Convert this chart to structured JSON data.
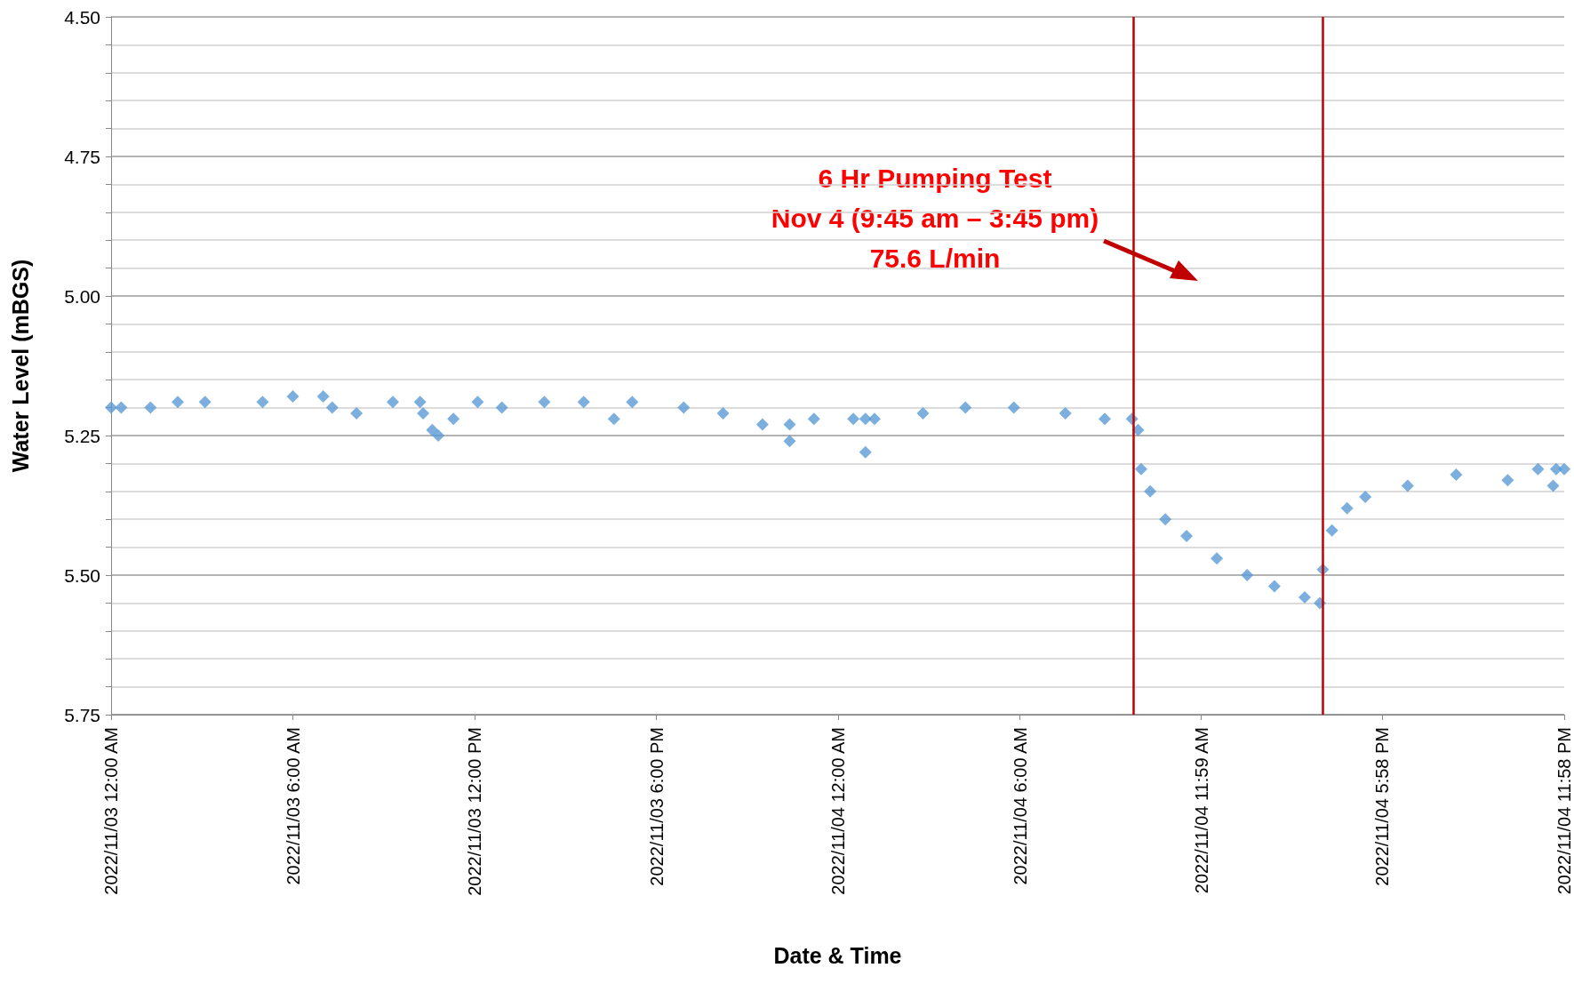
{
  "chart_data": {
    "type": "scatter",
    "xlabel": "Date & Time",
    "ylabel": "Water Level (mBGS)",
    "annotations": [
      "6 Hr Pumping Test\nNov 4 (9:45 am – 3:45 pm)\n75.6 L/min"
    ],
    "marker": "diamond",
    "grid": "y",
    "xlim": [
      "2022-11-03T00:00",
      "2022-11-04T23:58"
    ],
    "xticks": [
      {
        "value": "2022-11-03T00:00",
        "label": "2022/11/03 12:00 AM"
      },
      {
        "value": "2022-11-03T06:00",
        "label": "2022/11/03 6:00 AM"
      },
      {
        "value": "2022-11-03T12:00",
        "label": "2022/11/03 12:00 PM"
      },
      {
        "value": "2022-11-03T18:00",
        "label": "2022/11/03 6:00 PM"
      },
      {
        "value": "2022-11-04T00:00",
        "label": "2022/11/04 12:00 AM"
      },
      {
        "value": "2022-11-04T06:00",
        "label": "2022/11/04 6:00 AM"
      },
      {
        "value": "2022-11-04T11:59",
        "label": "2022/11/04 11:59 AM"
      },
      {
        "value": "2022-11-04T17:58",
        "label": "2022/11/04 5:58 PM"
      },
      {
        "value": "2022-11-04T23:58",
        "label": "2022/11/04 11:58 PM"
      }
    ],
    "ylim": [
      5.75,
      4.5
    ],
    "yticks": [
      {
        "value": 4.5,
        "label": "4.50"
      },
      {
        "value": 4.55,
        "label": null
      },
      {
        "value": 4.6,
        "label": null
      },
      {
        "value": 4.65,
        "label": null
      },
      {
        "value": 4.7,
        "label": null
      },
      {
        "value": 4.75,
        "label": "4.75"
      },
      {
        "value": 4.8,
        "label": null
      },
      {
        "value": 4.85,
        "label": null
      },
      {
        "value": 4.9,
        "label": null
      },
      {
        "value": 4.95,
        "label": null
      },
      {
        "value": 5.0,
        "label": "5.00"
      },
      {
        "value": 5.05,
        "label": null
      },
      {
        "value": 5.1,
        "label": null
      },
      {
        "value": 5.15,
        "label": null
      },
      {
        "value": 5.2,
        "label": null
      },
      {
        "value": 5.25,
        "label": "5.25"
      },
      {
        "value": 5.3,
        "label": null
      },
      {
        "value": 5.35,
        "label": null
      },
      {
        "value": 5.4,
        "label": null
      },
      {
        "value": 5.45,
        "label": null
      },
      {
        "value": 5.5,
        "label": "5.50"
      },
      {
        "value": 5.55,
        "label": null
      },
      {
        "value": 5.6,
        "label": null
      },
      {
        "value": 5.65,
        "label": null
      },
      {
        "value": 5.7,
        "label": null
      },
      {
        "value": 5.75,
        "label": "5.75"
      }
    ],
    "ref_lines": [
      {
        "axis": "x",
        "value": "2022-11-04T09:45",
        "label": null,
        "color": "#c00000"
      },
      {
        "axis": "x",
        "value": "2022-11-04T16:00",
        "label": null,
        "color": "#c00000"
      }
    ],
    "series": [
      {
        "color": "#5b9bd5",
        "x": [
          "2022-11-03T00:00",
          "2022-11-03T00:20",
          "2022-11-03T01:18",
          "2022-11-03T02:12",
          "2022-11-03T03:06",
          "2022-11-03T05:00",
          "2022-11-03T06:00",
          "2022-11-03T07:00",
          "2022-11-03T07:18",
          "2022-11-03T08:06",
          "2022-11-03T09:18",
          "2022-11-03T10:12",
          "2022-11-03T10:18",
          "2022-11-03T10:36",
          "2022-11-03T10:48",
          "2022-11-03T11:18",
          "2022-11-03T12:06",
          "2022-11-03T12:54",
          "2022-11-03T14:18",
          "2022-11-03T15:36",
          "2022-11-03T16:36",
          "2022-11-03T17:12",
          "2022-11-03T18:54",
          "2022-11-03T20:12",
          "2022-11-03T21:30",
          "2022-11-03T22:24",
          "2022-11-03T22:24",
          "2022-11-03T23:12",
          "2022-11-04T00:30",
          "2022-11-04T00:54",
          "2022-11-04T00:54",
          "2022-11-04T01:12",
          "2022-11-04T02:48",
          "2022-11-04T04:12",
          "2022-11-04T05:48",
          "2022-11-04T07:30",
          "2022-11-04T08:48",
          "2022-11-04T09:42",
          "2022-11-04T09:54",
          "2022-11-04T10:00",
          "2022-11-04T10:18",
          "2022-11-04T10:48",
          "2022-11-04T11:30",
          "2022-11-04T12:30",
          "2022-11-04T13:30",
          "2022-11-04T14:24",
          "2022-11-04T15:24",
          "2022-11-04T15:54",
          "2022-11-04T16:00",
          "2022-11-04T16:18",
          "2022-11-04T16:48",
          "2022-11-04T17:24",
          "2022-11-04T18:48",
          "2022-11-04T20:24",
          "2022-11-04T22:06",
          "2022-11-04T23:06",
          "2022-11-04T23:36",
          "2022-11-04T23:42",
          "2022-11-04T23:58"
        ],
        "values": [
          5.2,
          5.2,
          5.2,
          5.19,
          5.19,
          5.19,
          5.18,
          5.18,
          5.2,
          5.21,
          5.19,
          5.19,
          5.21,
          5.24,
          5.25,
          5.22,
          5.19,
          5.2,
          5.19,
          5.19,
          5.22,
          5.19,
          5.2,
          5.21,
          5.23,
          5.23,
          5.26,
          5.22,
          5.22,
          5.22,
          5.28,
          5.22,
          5.21,
          5.2,
          5.2,
          5.21,
          5.22,
          5.22,
          5.24,
          5.31,
          5.35,
          5.4,
          5.43,
          5.47,
          5.5,
          5.52,
          5.54,
          5.55,
          5.49,
          5.42,
          5.38,
          5.36,
          5.34,
          5.32,
          5.33,
          5.31,
          5.34,
          5.31,
          5.31
        ]
      }
    ]
  }
}
